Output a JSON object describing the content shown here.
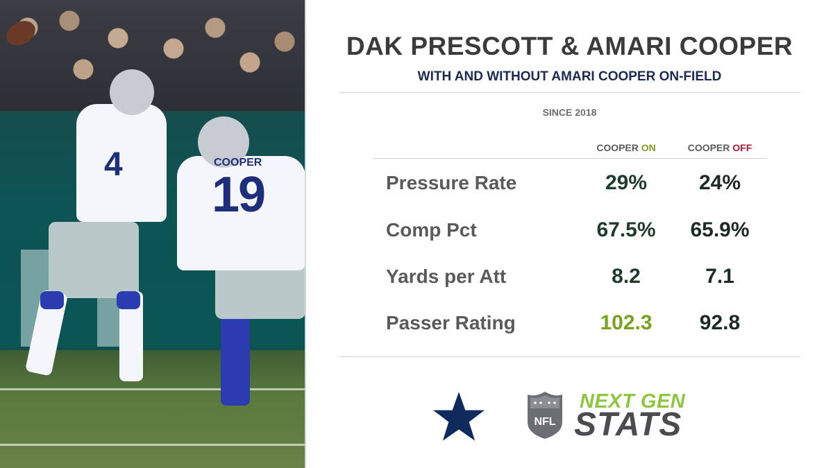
{
  "photo": {
    "player1_number": "4",
    "player2_number": "19",
    "player2_name": "COOPER"
  },
  "header": {
    "title": "DAK PRESCOTT & AMARI COOPER",
    "subtitle": "WITH AND WITHOUT AMARI COOPER ON-FIELD",
    "since": "SINCE 2018"
  },
  "columns": {
    "on": {
      "prefix": "COOPER",
      "status": "ON",
      "color": "#7aa21f"
    },
    "off": {
      "prefix": "COOPER",
      "status": "OFF",
      "color": "#b0163b"
    }
  },
  "rows": [
    {
      "label": "Pressure Rate",
      "on": "29%",
      "off": "24%"
    },
    {
      "label": "Comp Pct",
      "on": "67.5%",
      "off": "65.9%"
    },
    {
      "label": "Yards per Att",
      "on": "8.2",
      "off": "7.1"
    },
    {
      "label": "Passer Rating",
      "on": "102.3",
      "off": "92.8"
    }
  ],
  "logos": {
    "team": "dallas-cowboys-star-icon",
    "league": "nfl-shield-icon",
    "brand_top": "NEXT GEN",
    "brand_bottom": "STATS",
    "brand_colors": {
      "green": "#8dc63f",
      "gray": "#4a4c50"
    }
  },
  "colors": {
    "title": "#3b3b3d",
    "subtitle": "#1c2a52",
    "highlight": "#7aa21f",
    "navy": "#0f2a5c"
  }
}
